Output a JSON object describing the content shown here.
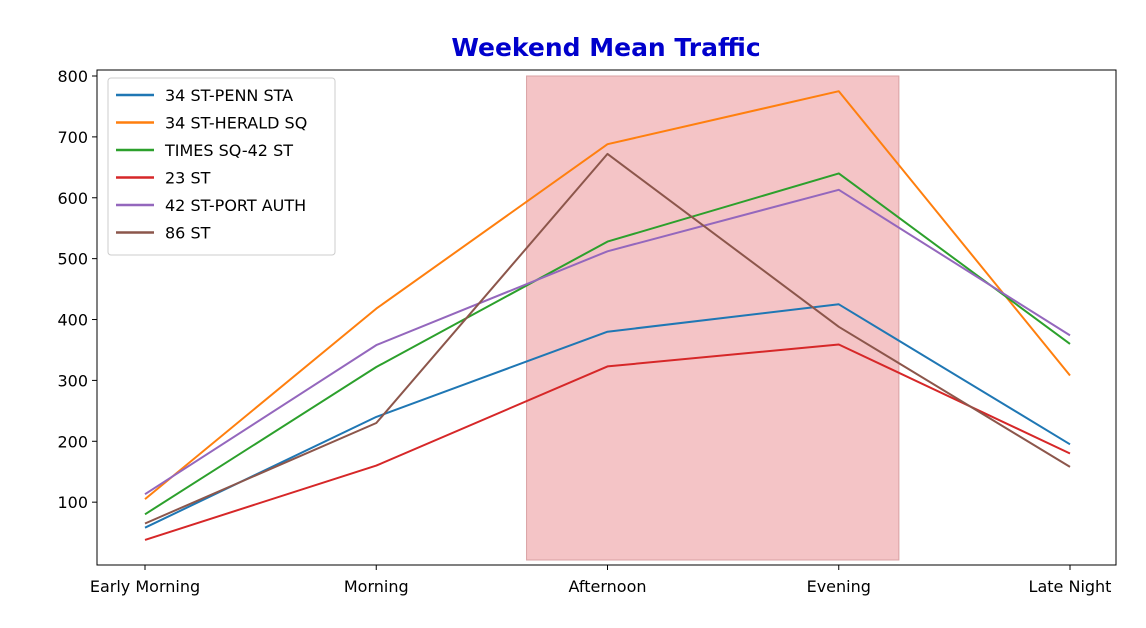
{
  "chart_data": {
    "type": "line",
    "title": "Weekend Mean Traffic",
    "title_color": "#0000cc",
    "xlabel": "",
    "ylabel": "",
    "categories": [
      "Early Morning",
      "Morning",
      "Afternoon",
      "Evening",
      "Late Night"
    ],
    "ylim": [
      5,
      800
    ],
    "yticks": [
      100,
      200,
      300,
      400,
      500,
      600,
      700,
      800
    ],
    "grid": false,
    "legend_position": "upper-left",
    "highlight_band": {
      "x_start": 1.65,
      "x_end": 3.26,
      "color": "#f4c4c6"
    },
    "series": [
      {
        "name": "34 ST-PENN STA",
        "color": "#1f77b4",
        "values": [
          58,
          240,
          380,
          425,
          195
        ]
      },
      {
        "name": "34 ST-HERALD SQ",
        "color": "#ff7f0e",
        "values": [
          105,
          418,
          688,
          775,
          308
        ]
      },
      {
        "name": "TIMES SQ-42 ST",
        "color": "#2ca02c",
        "values": [
          80,
          322,
          528,
          640,
          360
        ]
      },
      {
        "name": "23 ST",
        "color": "#d62728",
        "values": [
          38,
          160,
          323,
          359,
          180
        ]
      },
      {
        "name": "42 ST-PORT AUTH",
        "color": "#9467bd",
        "values": [
          113,
          358,
          512,
          613,
          374
        ]
      },
      {
        "name": "86 ST",
        "color": "#8c564b",
        "values": [
          65,
          230,
          672,
          388,
          158
        ]
      }
    ]
  }
}
